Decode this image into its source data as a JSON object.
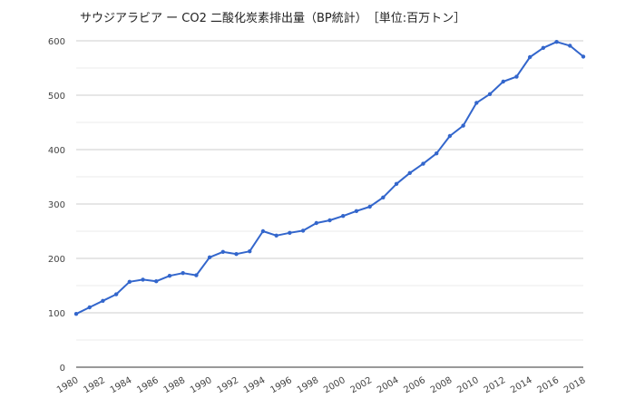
{
  "chart_data": {
    "type": "line",
    "title": "サウジアラビア ー CO2 二酸化炭素排出量（BP統計）　［単位:百万トン］",
    "xlabel": "",
    "ylabel": "",
    "ylim": [
      0,
      600
    ],
    "y_ticks": [
      "0",
      "100",
      "200",
      "300",
      "400",
      "500",
      "600"
    ],
    "x_ticks": [
      "1980",
      "1982",
      "1984",
      "1986",
      "1988",
      "1990",
      "1992",
      "1994",
      "1996",
      "1998",
      "2000",
      "2002",
      "2004",
      "2006",
      "2008",
      "2010",
      "2012",
      "2014",
      "2016",
      "2018"
    ],
    "grid": true,
    "legend": "none",
    "color": "#3366cc",
    "x": [
      1980,
      1981,
      1982,
      1983,
      1984,
      1985,
      1986,
      1987,
      1988,
      1989,
      1990,
      1991,
      1992,
      1993,
      1994,
      1995,
      1996,
      1997,
      1998,
      1999,
      2000,
      2001,
      2002,
      2003,
      2004,
      2005,
      2006,
      2007,
      2008,
      2009,
      2010,
      2011,
      2012,
      2013,
      2014,
      2015,
      2016,
      2017,
      2018
    ],
    "values": [
      98,
      110,
      122,
      134,
      157,
      161,
      158,
      168,
      173,
      169,
      202,
      212,
      208,
      213,
      250,
      242,
      247,
      251,
      265,
      270,
      278,
      287,
      295,
      312,
      337,
      357,
      374,
      393,
      425,
      444,
      486,
      502,
      525,
      534,
      570,
      587,
      598,
      591,
      571
    ]
  }
}
